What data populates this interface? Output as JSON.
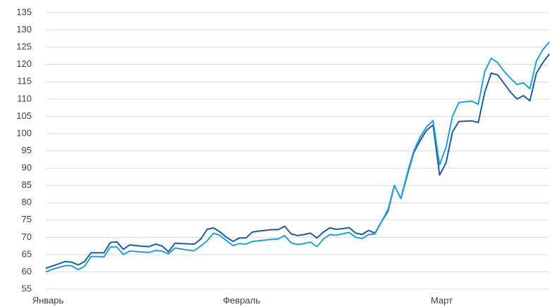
{
  "chart_data": {
    "type": "line",
    "categories": [
      "Январь",
      null,
      null,
      null,
      null,
      null,
      null,
      null,
      null,
      null,
      null,
      null,
      null,
      null,
      null,
      null,
      null,
      null,
      null,
      null,
      null,
      null,
      null,
      null,
      null,
      null,
      null,
      null,
      null,
      null,
      "Февраль",
      null,
      null,
      null,
      null,
      null,
      null,
      null,
      null,
      null,
      null,
      null,
      null,
      null,
      null,
      null,
      null,
      null,
      null,
      null,
      null,
      null,
      null,
      null,
      null,
      null,
      null,
      null,
      null,
      null,
      null,
      "Март",
      null,
      null,
      null,
      null,
      null,
      null,
      null,
      null,
      null,
      null,
      null,
      null,
      null,
      null,
      null,
      null,
      null
    ],
    "series": [
      {
        "color": "#1f5c99",
        "values": [
          61,
          61.7,
          62.3,
          63,
          62.8,
          62,
          63,
          65.5,
          65.5,
          65.5,
          68.5,
          68.7,
          66.5,
          67.8,
          67.6,
          67.4,
          67.3,
          68,
          67.5,
          65.8,
          68.3,
          68.2,
          68.1,
          68,
          69.5,
          72.3,
          72.7,
          71.5,
          70,
          68.8,
          69.8,
          69.8,
          71.5,
          71.8,
          72,
          72.2,
          72.2,
          73.2,
          71,
          70.5,
          70.8,
          71.2,
          69.8,
          71.5,
          72.7,
          72.3,
          72.5,
          72.8,
          71.2,
          70.8,
          72,
          71.2,
          74.5,
          77.5,
          85,
          81.2,
          88,
          94.5,
          98,
          101,
          102.5,
          88,
          91.5,
          100.5,
          103.5,
          103.6,
          103.7,
          103.2,
          112,
          117.5,
          117,
          114.5,
          112,
          110,
          111,
          109.5,
          117.5,
          120.5,
          123
        ]
      },
      {
        "color": "#21a0d8",
        "values": [
          60,
          60.7,
          61.3,
          61.8,
          61.8,
          60.6,
          61.6,
          64.4,
          64.4,
          64.3,
          67.2,
          67.2,
          65,
          66,
          65.9,
          65.7,
          65.6,
          66.2,
          66,
          65.2,
          66.9,
          66.6,
          66.3,
          66.1,
          67.5,
          69,
          71.2,
          70.5,
          69,
          67.6,
          68.2,
          68,
          68.8,
          69,
          69.2,
          69.4,
          69.5,
          70.5,
          68.4,
          67.9,
          68.2,
          68.6,
          67.3,
          69.5,
          70.8,
          70.6,
          71,
          71.4,
          70,
          69.6,
          70.8,
          71,
          74.5,
          78,
          85,
          81.2,
          88.5,
          95,
          99,
          102,
          103.8,
          91,
          96,
          105,
          109,
          109.2,
          109.4,
          108.5,
          118,
          121.8,
          120.5,
          118,
          116,
          114.2,
          114.7,
          113,
          121,
          124.3,
          126.5
        ]
      }
    ],
    "ylim": [
      55,
      135
    ],
    "yticks": [
      55,
      60,
      65,
      70,
      75,
      80,
      85,
      90,
      95,
      100,
      105,
      110,
      115,
      120,
      125,
      130,
      135
    ],
    "grid": true
  }
}
